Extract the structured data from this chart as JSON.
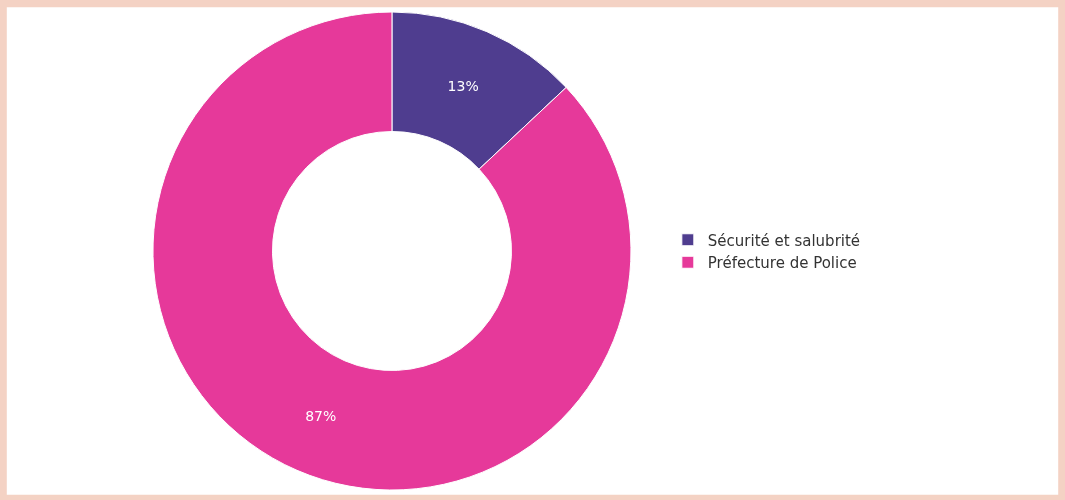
{
  "chart_data": {
    "type": "donut",
    "categories": [
      "Sécurité et salubrité",
      "Préfecture de Police"
    ],
    "values": [
      13,
      87
    ],
    "colors": [
      "#4f3d8f",
      "#e6399a"
    ],
    "value_labels": [
      "13%",
      "87%"
    ],
    "legend": "right"
  }
}
